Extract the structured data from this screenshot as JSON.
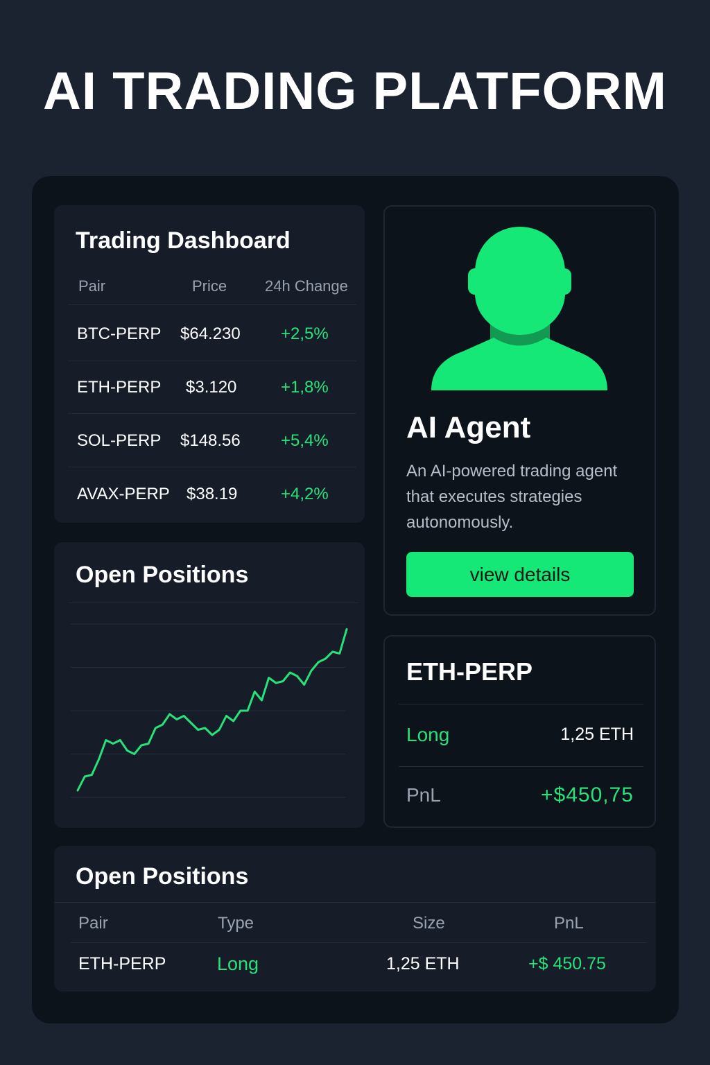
{
  "page": {
    "title": "AI TRADING PLATFORM"
  },
  "colors": {
    "background": "#1b2230",
    "panel": "#0d131b",
    "card": "#161d29",
    "accent": "#16e878",
    "positive": "#27e27a",
    "muted_text": "#9aa3b2"
  },
  "dashboard": {
    "title": "Trading Dashboard",
    "headers": [
      "Pair",
      "Price",
      "24h Change"
    ],
    "rows": [
      {
        "pair": "BTC-PERP",
        "price": "$64.230",
        "change": "+2,5%"
      },
      {
        "pair": "ETH-PERP",
        "price": "$3.120",
        "change": "+1,8%"
      },
      {
        "pair": "SOL-PERP",
        "price": "$148.56",
        "change": "+5,4%"
      },
      {
        "pair": "AVAX-PERP",
        "price": "$38.19",
        "change": "+4,2%"
      }
    ]
  },
  "agent": {
    "icon": "person-avatar-icon",
    "title": "AI Agent",
    "description": "An AI-powered trading agent that executes strategies autonomously.",
    "button_label": "view details"
  },
  "chart_card": {
    "title": "Open Positions"
  },
  "chart_data": {
    "type": "line",
    "title": "",
    "xlabel": "",
    "ylabel": "",
    "grid": true,
    "ylim": [
      0,
      100
    ],
    "series": [
      {
        "values": [
          4,
          12,
          13,
          22,
          33,
          31,
          33,
          27,
          25,
          30,
          31,
          40,
          42,
          48,
          45,
          47,
          43,
          39,
          40,
          36,
          39,
          47,
          44,
          50,
          50,
          61,
          56,
          69,
          66,
          67,
          72,
          70,
          65,
          73,
          78,
          80,
          84,
          83,
          97
        ]
      }
    ]
  },
  "position_card": {
    "pair": "ETH-PERP",
    "side": "Long",
    "size": "1,25 ETH",
    "pnl_label": "PnL",
    "pnl_value": "+$450,75"
  },
  "positions_table": {
    "title": "Open Positions",
    "headers": [
      "Pair",
      "Type",
      "Size",
      "PnL"
    ],
    "rows": [
      {
        "pair": "ETH-PERP",
        "type": "Long",
        "size": "1,25 ETH",
        "pnl": "+$ 450.75"
      }
    ]
  }
}
